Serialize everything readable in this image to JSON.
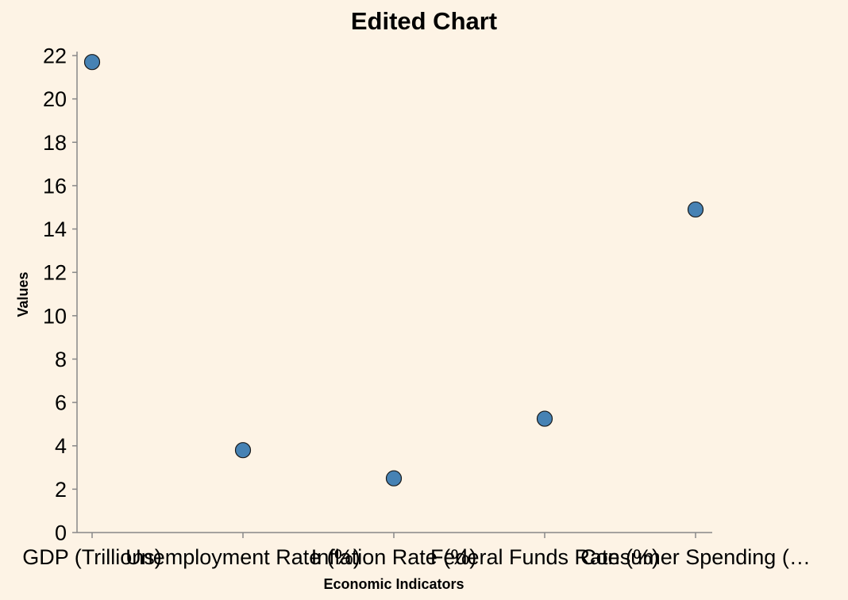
{
  "chart_data": {
    "type": "scatter",
    "title": "Edited Chart",
    "xlabel": "Economic Indicators",
    "ylabel": "Values",
    "categories": [
      "GDP (Trillions)",
      "Unemployment Rate (%)",
      "Inflation Rate (%)",
      "Federal Funds Rate (%)",
      "Consumer Spending (…"
    ],
    "values": [
      21.7,
      3.8,
      2.5,
      5.25,
      14.9
    ],
    "ylim": [
      0,
      22
    ],
    "yticks": [
      0,
      2,
      4,
      6,
      8,
      10,
      12,
      14,
      16,
      18,
      20,
      22
    ],
    "grid": false,
    "point_color": "#4682b4",
    "background": "#fdf3e5"
  }
}
